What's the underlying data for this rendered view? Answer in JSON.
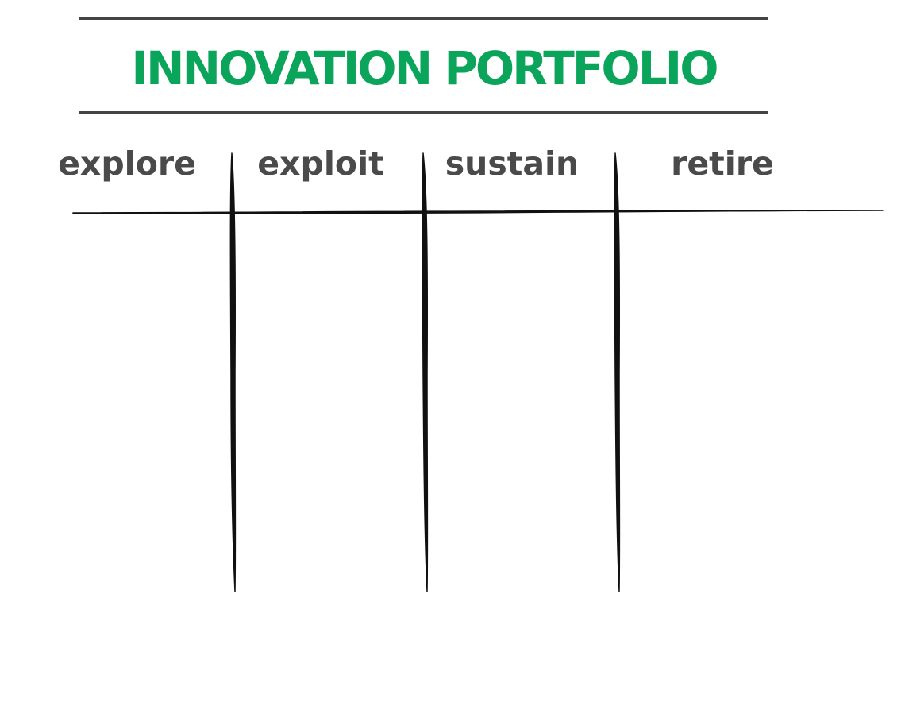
{
  "title": "INNOVATION PORTFOLIO",
  "columns": [
    "explore",
    "exploit",
    "sustain",
    "retire"
  ],
  "colors": {
    "title": "#0aa55a",
    "labels": "#4a4a4a",
    "rules": "#444444",
    "grid_lines": "#111111"
  }
}
